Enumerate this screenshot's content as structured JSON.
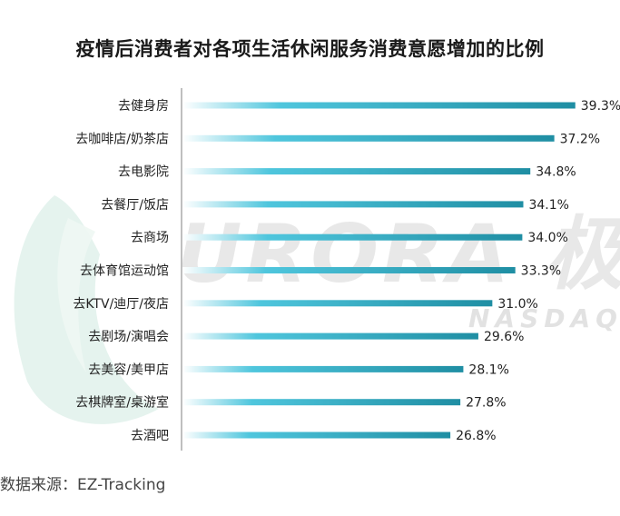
{
  "title": "疫情后消费者对各项生活休闲服务消费意愿增加的比例",
  "source": "数据来源：EZ-Tracking",
  "watermark": {
    "brand": "URORA 极光",
    "sub": "NASDAQ:JG"
  },
  "colors": {
    "bar_end": "#1f8ea3",
    "bar_mid": "#4fc6dd",
    "bar_start": "#ffffff",
    "axis": "#bfbfbf",
    "text": "#222222"
  },
  "chart_data": {
    "type": "bar",
    "orientation": "horizontal",
    "title": "疫情后消费者对各项生活休闲服务消费意愿增加的比例",
    "categories": [
      "去健身房",
      "去咖啡店/奶茶店",
      "去电影院",
      "去餐厅/饭店",
      "去商场",
      "去体育馆运动馆",
      "去KTV/迪厅/夜店",
      "去剧场/演唱会",
      "去美容/美甲店",
      "去棋牌室/桌游室",
      "去酒吧"
    ],
    "values": [
      39.3,
      37.2,
      34.8,
      34.1,
      34.0,
      33.3,
      31.0,
      29.6,
      28.1,
      27.8,
      26.8
    ],
    "value_labels": [
      "39.3%",
      "37.2%",
      "34.8%",
      "34.1%",
      "34.0%",
      "33.3%",
      "31.0%",
      "29.6%",
      "28.1%",
      "27.8%",
      "26.8%"
    ],
    "unit": "%",
    "xlim": [
      0,
      43.5
    ],
    "grid": false,
    "legend": "none"
  }
}
